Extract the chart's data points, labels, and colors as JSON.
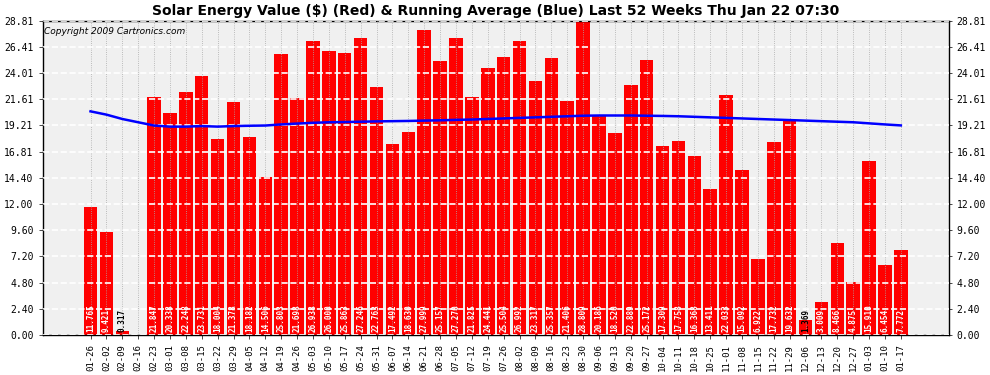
{
  "title": "Solar Energy Value ($) (Red) & Running Average (Blue) Last 52 Weeks Thu Jan 22 07:30",
  "copyright": "Copyright 2009 Cartronics.com",
  "bar_color": "#ff0000",
  "line_color": "#0000ff",
  "background_color": "#ffffff",
  "plot_bg_color": "#f0f0f0",
  "grid_color_h": "#ffffff",
  "grid_color_v": "#aaaaaa",
  "yticks": [
    0.0,
    2.4,
    4.8,
    7.2,
    9.6,
    12.0,
    14.4,
    16.81,
    19.21,
    21.61,
    24.01,
    26.41,
    28.81
  ],
  "ylim": [
    0,
    28.81
  ],
  "categories": [
    "01-26",
    "02-02",
    "02-09",
    "02-16",
    "02-23",
    "03-01",
    "03-08",
    "03-15",
    "03-22",
    "03-29",
    "04-05",
    "04-12",
    "04-19",
    "04-26",
    "05-03",
    "05-10",
    "05-17",
    "05-24",
    "05-31",
    "06-07",
    "06-14",
    "06-21",
    "06-28",
    "07-05",
    "07-12",
    "07-19",
    "07-26",
    "08-02",
    "08-09",
    "08-16",
    "08-23",
    "08-30",
    "09-06",
    "09-13",
    "09-20",
    "09-27",
    "10-04",
    "10-11",
    "10-18",
    "10-25",
    "11-01",
    "11-08",
    "11-15",
    "11-22",
    "11-29",
    "12-06",
    "12-13",
    "12-20",
    "12-27",
    "01-03",
    "01-10",
    "01-17"
  ],
  "values": [
    11.765,
    9.421,
    0.317,
    0.0,
    21.847,
    20.338,
    22.248,
    23.731,
    18.004,
    21.378,
    18.182,
    14.506,
    25.803,
    21.698,
    26.938,
    26.0,
    25.863,
    27.246,
    22.763,
    17.492,
    18.63,
    27.999,
    25.157,
    27.27,
    21.825,
    24.441,
    25.504,
    26.992,
    23.317,
    25.357,
    21.406,
    28.809,
    20.186,
    18.52,
    22.889,
    25.172,
    17.309,
    17.758,
    16.368,
    13.411,
    22.033,
    15.092,
    6.922,
    17.732,
    19.632,
    1.369,
    3.009,
    8.466,
    4.875,
    15.91,
    6.454,
    7.772
  ],
  "running_avg": [
    20.5,
    20.2,
    19.8,
    19.5,
    19.2,
    19.1,
    19.1,
    19.15,
    19.1,
    19.15,
    19.18,
    19.2,
    19.3,
    19.38,
    19.45,
    19.5,
    19.52,
    19.55,
    19.58,
    19.6,
    19.62,
    19.65,
    19.68,
    19.72,
    19.75,
    19.8,
    19.85,
    19.9,
    19.95,
    20.0,
    20.05,
    20.1,
    20.12,
    20.12,
    20.12,
    20.1,
    20.08,
    20.05,
    20.0,
    19.95,
    19.9,
    19.85,
    19.8,
    19.75,
    19.7,
    19.65,
    19.6,
    19.55,
    19.5,
    19.4,
    19.3,
    19.21
  ]
}
